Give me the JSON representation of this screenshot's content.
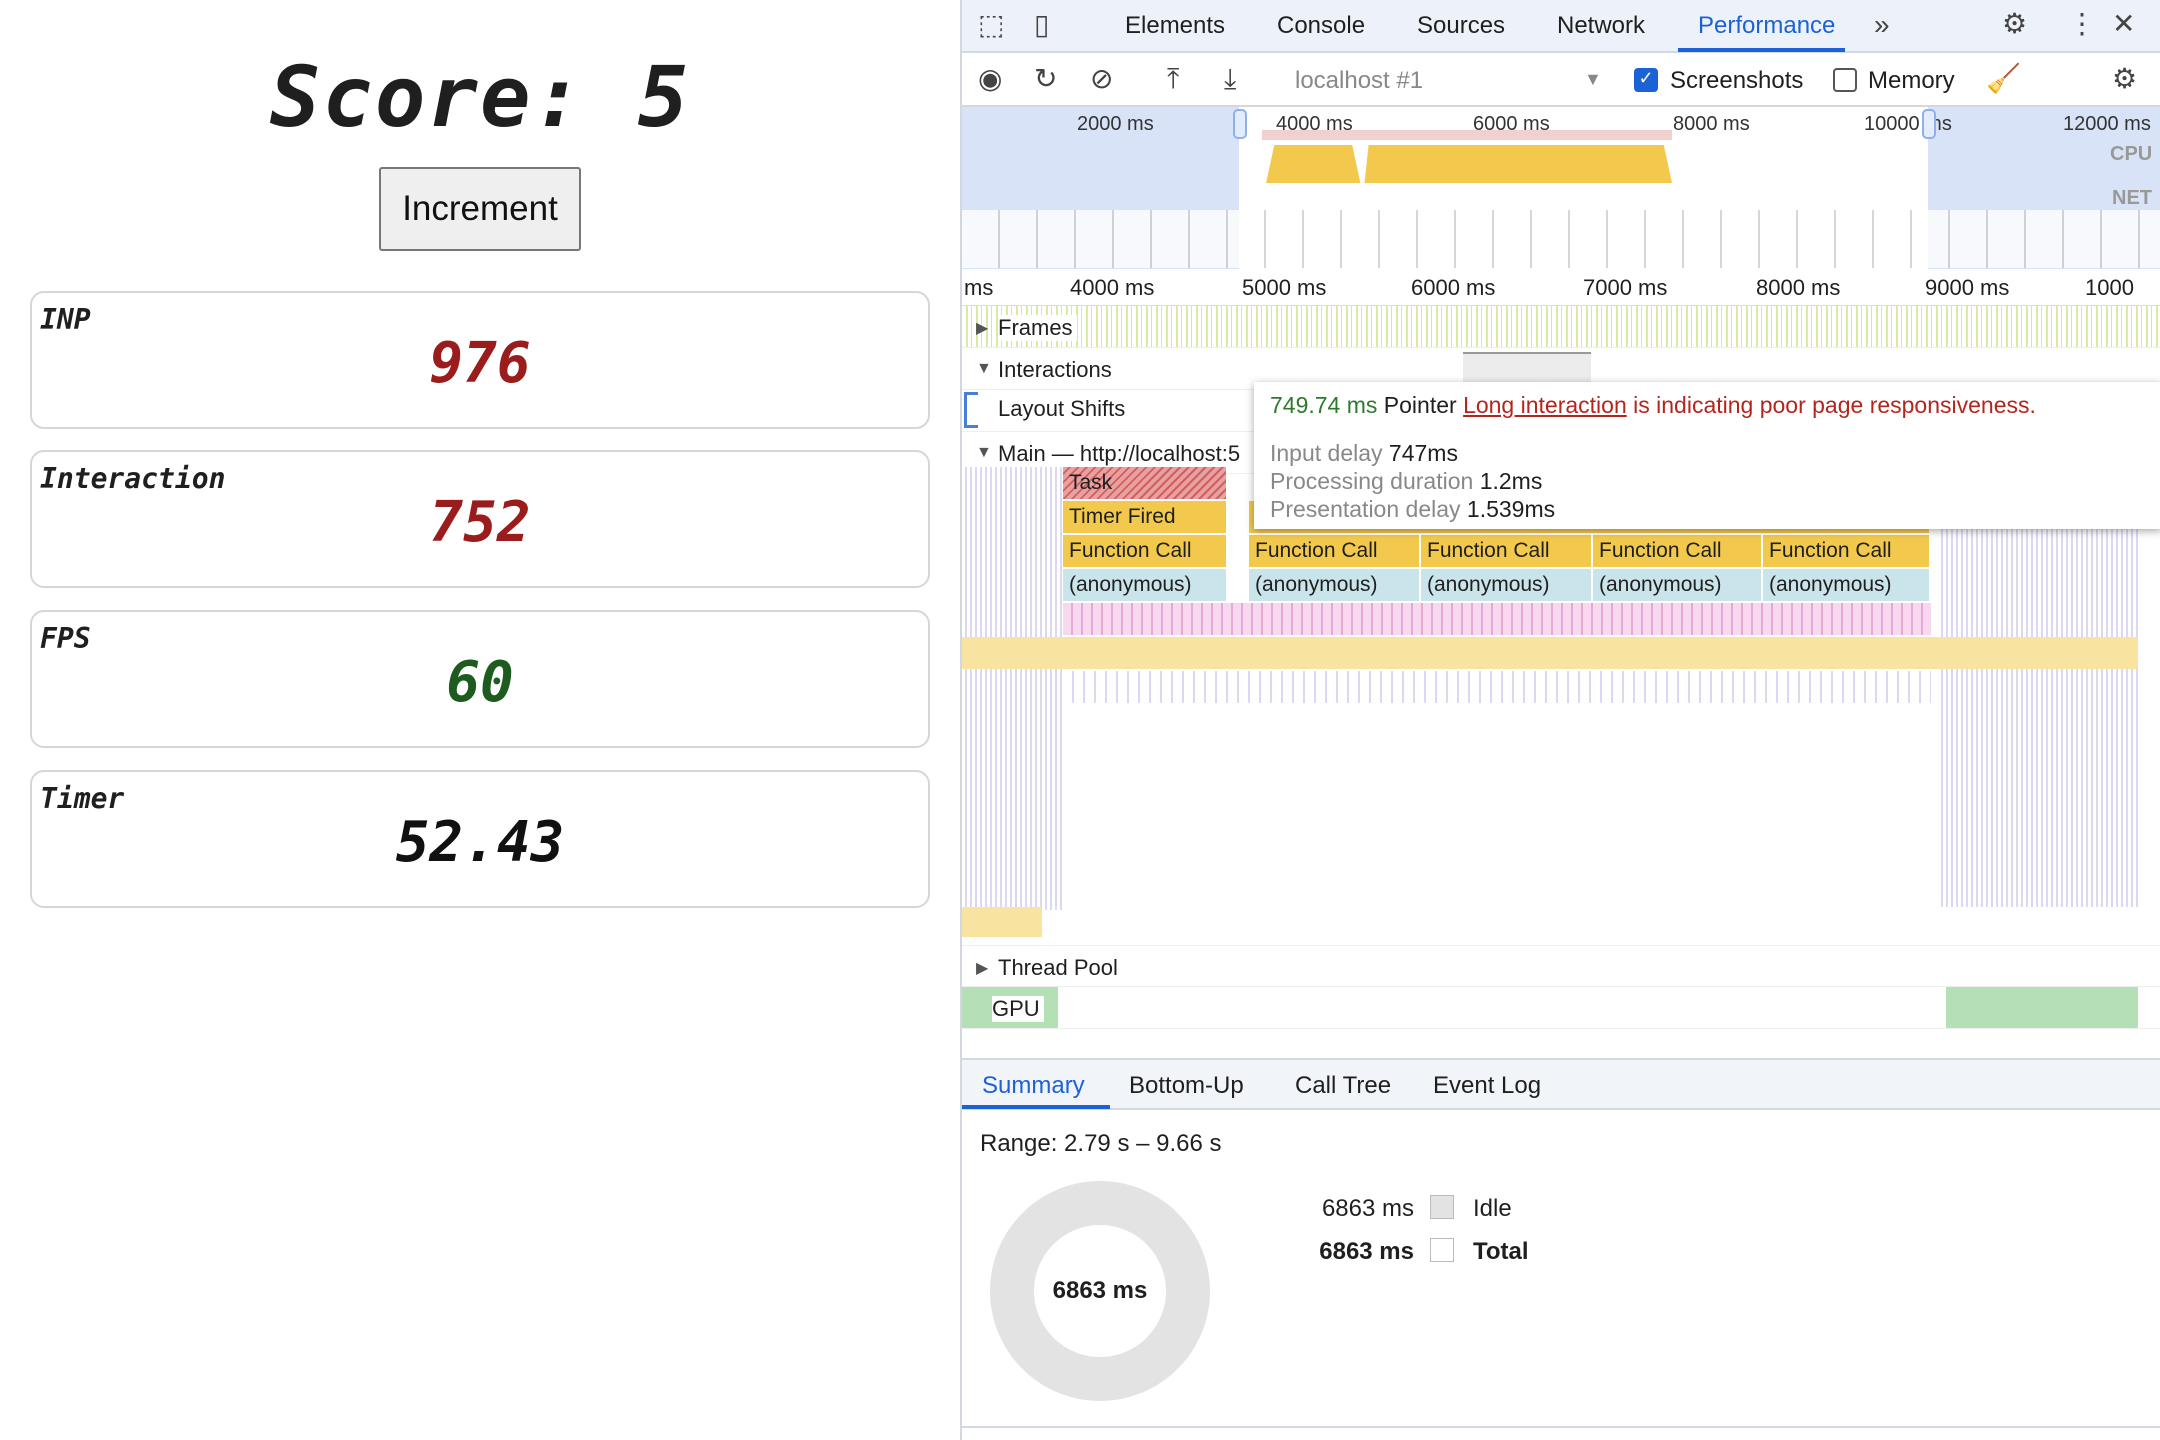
{
  "app": {
    "score_label": "Score:",
    "score_value": "5",
    "increment_label": "Increment",
    "cards": [
      {
        "label": "INP",
        "value": "976",
        "color": "#9b1c1c"
      },
      {
        "label": "Interaction",
        "value": "752",
        "color": "#9b1c1c"
      },
      {
        "label": "FPS",
        "value": "60",
        "color": "#1e5b1e"
      },
      {
        "label": "Timer",
        "value": "52.43",
        "color": "#111111"
      }
    ]
  },
  "devtools": {
    "tabs": [
      "Elements",
      "Console",
      "Sources",
      "Network",
      "Performance"
    ],
    "active_tab": "Performance",
    "toolbar": {
      "target": "localhost #1",
      "screenshots_label": "Screenshots",
      "screenshots_checked": true,
      "memory_label": "Memory",
      "memory_checked": false
    },
    "overview": {
      "labels": [
        "2000 ms",
        "4000 ms",
        "6000 ms",
        "8000 ms",
        "10000 ms",
        "12000 ms"
      ],
      "cpu": "CPU",
      "net": "NET"
    },
    "ruler": [
      "ms",
      "4000 ms",
      "5000 ms",
      "6000 ms",
      "7000 ms",
      "8000 ms",
      "9000 ms",
      "1000"
    ],
    "tracks": {
      "frames": "Frames",
      "interactions": "Interactions",
      "layout_shifts": "Layout Shifts",
      "main": "Main — http://localhost:5",
      "thread_pool": "Thread Pool",
      "gpu": "GPU"
    },
    "flame": {
      "task": "Task",
      "timer": "Timer Fired",
      "function": "Function Call",
      "anon": "(anonymous)"
    },
    "tooltip": {
      "duration": "749.74 ms",
      "type": "Pointer",
      "link": "Long interaction",
      "message": "is indicating poor page responsiveness.",
      "input_delay_label": "Input delay",
      "input_delay": "747ms",
      "processing_label": "Processing duration",
      "processing": "1.2ms",
      "presentation_label": "Presentation delay",
      "presentation": "1.539ms"
    },
    "bottom_tabs": [
      "Summary",
      "Bottom-Up",
      "Call Tree",
      "Event Log"
    ],
    "summary": {
      "range": "Range: 2.79 s – 9.66 s",
      "donut_label": "6863 ms",
      "rows": [
        {
          "value": "6863 ms",
          "label": "Idle"
        },
        {
          "value": "6863 ms",
          "label": "Total"
        }
      ]
    }
  }
}
